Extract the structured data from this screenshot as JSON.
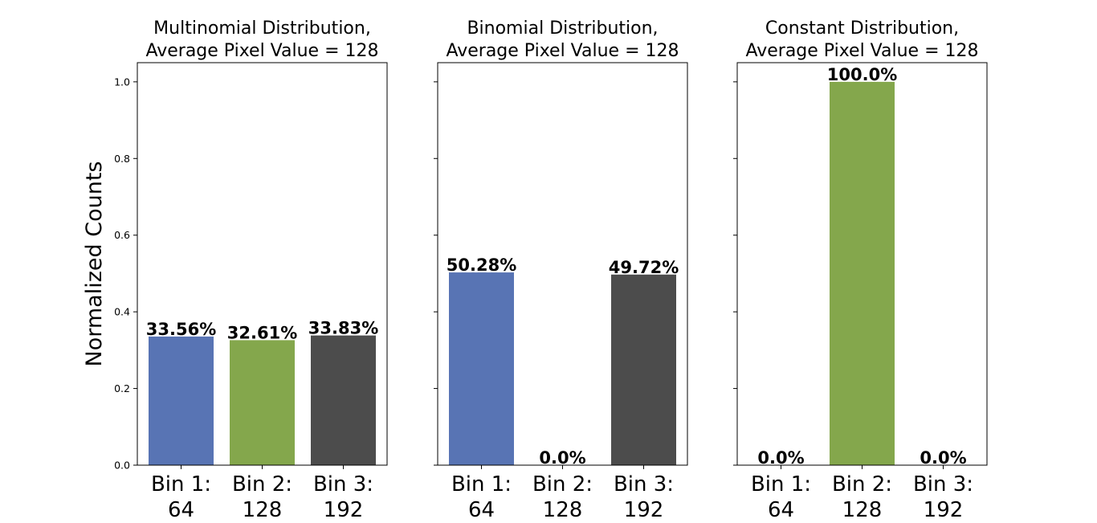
{
  "chart_data": [
    {
      "type": "bar",
      "title": [
        "Multinomial Distribution,",
        "Average Pixel Value = 128"
      ],
      "categories": [
        [
          "Bin 1:",
          "64"
        ],
        [
          "Bin 2:",
          "128"
        ],
        [
          "Bin 3:",
          "192"
        ]
      ],
      "values": [
        0.3356,
        0.3261,
        0.3383
      ],
      "data_labels": [
        "33.56%",
        "32.61%",
        "33.83%"
      ],
      "colors": [
        "#5874b4",
        "#84a74c",
        "#4c4c4c"
      ],
      "ylabel": "Normalized Counts",
      "ylim": [
        0,
        1.05
      ],
      "yticks": [
        "0.0",
        "0.2",
        "0.4",
        "0.6",
        "0.8",
        "1.0"
      ],
      "show_ytick_labels": true,
      "grid": false
    },
    {
      "type": "bar",
      "title": [
        "Binomial Distribution,",
        "Average Pixel Value = 128"
      ],
      "categories": [
        [
          "Bin 1:",
          "64"
        ],
        [
          "Bin 2:",
          "128"
        ],
        [
          "Bin 3:",
          "192"
        ]
      ],
      "values": [
        0.5028,
        0.0,
        0.4972
      ],
      "data_labels": [
        "50.28%",
        "0.0%",
        "49.72%"
      ],
      "colors": [
        "#5874b4",
        "#84a74c",
        "#4c4c4c"
      ],
      "ylabel": "",
      "ylim": [
        0,
        1.05
      ],
      "yticks": [
        "0.0",
        "0.2",
        "0.4",
        "0.6",
        "0.8",
        "1.0"
      ],
      "show_ytick_labels": false,
      "grid": false
    },
    {
      "type": "bar",
      "title": [
        "Constant Distribution,",
        "Average Pixel Value = 128"
      ],
      "categories": [
        [
          "Bin 1:",
          "64"
        ],
        [
          "Bin 2:",
          "128"
        ],
        [
          "Bin 3:",
          "192"
        ]
      ],
      "values": [
        0.0,
        1.0,
        0.0
      ],
      "data_labels": [
        "0.0%",
        "100.0%",
        "0.0%"
      ],
      "colors": [
        "#5874b4",
        "#84a74c",
        "#4c4c4c"
      ],
      "ylabel": "",
      "ylim": [
        0,
        1.05
      ],
      "yticks": [
        "0.0",
        "0.2",
        "0.4",
        "0.6",
        "0.8",
        "1.0"
      ],
      "show_ytick_labels": false,
      "grid": false
    }
  ]
}
